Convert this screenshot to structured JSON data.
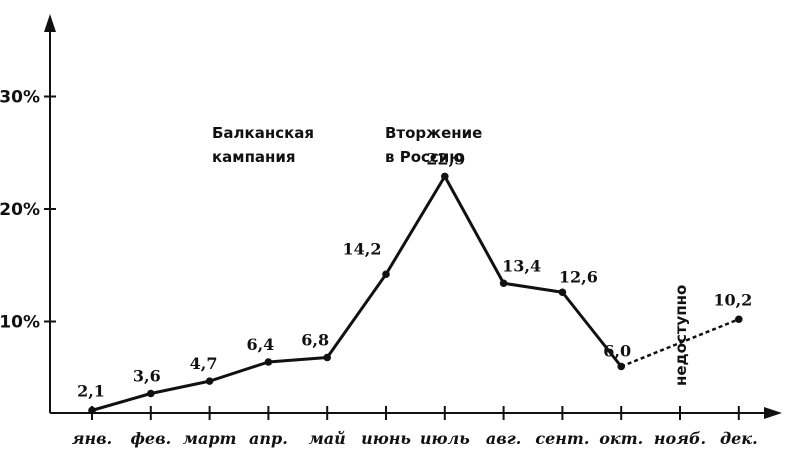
{
  "chart_data": {
    "type": "line",
    "categories": [
      "янв.",
      "фев.",
      "март",
      "апр.",
      "май",
      "июнь",
      "июль",
      "авг.",
      "сент.",
      "окт.",
      "нояб.",
      "дек."
    ],
    "values": [
      2.1,
      3.6,
      4.7,
      6.4,
      6.8,
      14.2,
      22.9,
      13.4,
      12.6,
      6.0,
      null,
      10.2
    ],
    "value_labels": [
      "2,1",
      "3,6",
      "4,7",
      "6,4",
      "6,8",
      "14,2",
      "22,9",
      "13,4",
      "12,6",
      "6,0",
      "",
      "10,2"
    ],
    "missing_label": "недоступно",
    "yticks": [
      {
        "value": 10,
        "label": "10%"
      },
      {
        "value": 20,
        "label": "20%"
      },
      {
        "value": 30,
        "label": "30%"
      }
    ],
    "ylim": [
      0,
      35
    ],
    "annotations": [
      {
        "lines": [
          "Балканская",
          "кампания"
        ],
        "at_category": "апр."
      },
      {
        "lines": [
          "Вторжение",
          "в Россию"
        ],
        "at_category": "июль"
      }
    ],
    "grid": false,
    "legend": false
  }
}
